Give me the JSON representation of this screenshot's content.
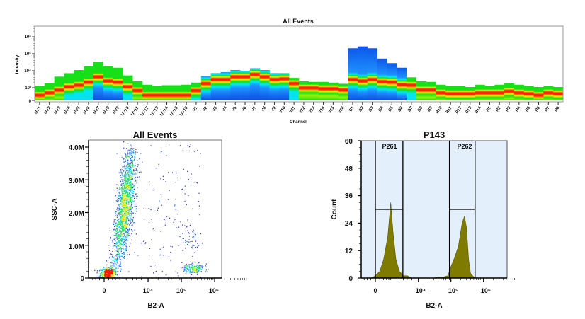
{
  "chart_data": [
    {
      "type": "heatmap",
      "title": "All Events",
      "xlabel": "Channel",
      "ylabel": "Intensity",
      "yscale": "biexponential",
      "yticks": [
        "0",
        "10³",
        "10⁴",
        "10⁵",
        "10⁶"
      ],
      "colors": {
        "red": "#ff2000",
        "yellow": "#f0f000",
        "green": "#18e018",
        "cyan": "#00e8f0",
        "blue": "#0c58e8"
      },
      "channels": [
        {
          "name": "UV1",
          "max": 1300,
          "peak": 480,
          "upper": "green",
          "lower": "green"
        },
        {
          "name": "UV2",
          "max": 1900,
          "peak": 670,
          "upper": "green",
          "lower": "green"
        },
        {
          "name": "UV3",
          "max": 4500,
          "peak": 890,
          "upper": "green",
          "lower": "green"
        },
        {
          "name": "UV4",
          "max": 7200,
          "peak": 1300,
          "upper": "green",
          "lower": "cyan"
        },
        {
          "name": "UV5",
          "max": 11000,
          "peak": 1600,
          "upper": "green",
          "lower": "cyan"
        },
        {
          "name": "UV6",
          "max": 18000,
          "peak": 2400,
          "upper": "green",
          "lower": "cyan"
        },
        {
          "name": "UV7",
          "max": 34000,
          "peak": 5000,
          "upper": "green",
          "lower": "blue"
        },
        {
          "name": "UV8",
          "max": 19000,
          "peak": 2800,
          "upper": "green",
          "lower": "blue"
        },
        {
          "name": "UV9",
          "max": 15000,
          "peak": 2400,
          "upper": "green",
          "lower": "blue"
        },
        {
          "name": "UV10",
          "max": 5300,
          "peak": 1300,
          "upper": "green",
          "lower": "cyan"
        },
        {
          "name": "UV11",
          "max": 2400,
          "peak": 850,
          "upper": "green",
          "lower": "green"
        },
        {
          "name": "UV12",
          "max": 1500,
          "peak": 480,
          "upper": "green",
          "lower": "green"
        },
        {
          "name": "UV13",
          "max": 1300,
          "peak": 480,
          "upper": "green",
          "lower": "green"
        },
        {
          "name": "UV14",
          "max": 1400,
          "peak": 480,
          "upper": "green",
          "lower": "green"
        },
        {
          "name": "UV15",
          "max": 1400,
          "peak": 480,
          "upper": "green",
          "lower": "green"
        },
        {
          "name": "UV16",
          "max": 1500,
          "peak": 480,
          "upper": "green",
          "lower": "green"
        },
        {
          "name": "V1",
          "max": 2000,
          "peak": 850,
          "upper": "green",
          "lower": "cyan"
        },
        {
          "name": "V2",
          "max": 4900,
          "peak": 2000,
          "upper": "blue",
          "lower": "blue"
        },
        {
          "name": "V3",
          "max": 7200,
          "peak": 3500,
          "upper": "blue",
          "lower": "blue"
        },
        {
          "name": "V4",
          "max": 8300,
          "peak": 3500,
          "upper": "blue",
          "lower": "blue"
        },
        {
          "name": "V5",
          "max": 11000,
          "peak": 5000,
          "upper": "blue",
          "lower": "blue"
        },
        {
          "name": "V6",
          "max": 10000,
          "peak": 5000,
          "upper": "blue",
          "lower": "blue"
        },
        {
          "name": "V7",
          "max": 14000,
          "peak": 7000,
          "upper": "blue",
          "lower": "blue"
        },
        {
          "name": "V8",
          "max": 11000,
          "peak": 5000,
          "upper": "blue",
          "lower": "blue"
        },
        {
          "name": "V9",
          "max": 7200,
          "peak": 3500,
          "upper": "blue",
          "lower": "blue"
        },
        {
          "name": "V10",
          "max": 7200,
          "peak": 3800,
          "upper": "blue",
          "lower": "blue"
        },
        {
          "name": "V11",
          "max": 3800,
          "peak": 2000,
          "upper": "green",
          "lower": "cyan"
        },
        {
          "name": "V12",
          "max": 2400,
          "peak": 1100,
          "upper": "green",
          "lower": "green"
        },
        {
          "name": "V13",
          "max": 2200,
          "peak": 1100,
          "upper": "green",
          "lower": "green"
        },
        {
          "name": "V14",
          "max": 2200,
          "peak": 1000,
          "upper": "green",
          "lower": "green"
        },
        {
          "name": "V15",
          "max": 2000,
          "peak": 1000,
          "upper": "green",
          "lower": "green"
        },
        {
          "name": "V16",
          "max": 1700,
          "peak": 900,
          "upper": "green",
          "lower": "green"
        },
        {
          "name": "B1",
          "max": 210000,
          "peak": 3500,
          "upper": "blue",
          "lower": "blue"
        },
        {
          "name": "B2",
          "max": 270000,
          "peak": 2800,
          "upper": "blue",
          "lower": "blue"
        },
        {
          "name": "B3",
          "max": 210000,
          "peak": 3500,
          "upper": "blue",
          "lower": "blue"
        },
        {
          "name": "B4",
          "max": 52000,
          "peak": 2600,
          "upper": "blue",
          "lower": "blue"
        },
        {
          "name": "B5",
          "max": 28000,
          "peak": 2400,
          "upper": "blue",
          "lower": "blue"
        },
        {
          "name": "B6",
          "max": 15000,
          "peak": 1700,
          "upper": "blue",
          "lower": "blue"
        },
        {
          "name": "B7",
          "max": 4100,
          "peak": 1600,
          "upper": "green",
          "lower": "cyan"
        },
        {
          "name": "B8",
          "max": 2400,
          "peak": 900,
          "upper": "green",
          "lower": "green"
        },
        {
          "name": "B9",
          "max": 2200,
          "peak": 900,
          "upper": "green",
          "lower": "green"
        },
        {
          "name": "B10",
          "max": 1500,
          "peak": 670,
          "upper": "green",
          "lower": "green"
        },
        {
          "name": "B11",
          "max": 1300,
          "peak": 600,
          "upper": "green",
          "lower": "green"
        },
        {
          "name": "B12",
          "max": 1300,
          "peak": 600,
          "upper": "green",
          "lower": "green"
        },
        {
          "name": "B13",
          "max": 1100,
          "peak": 600,
          "upper": "green",
          "lower": "green"
        },
        {
          "name": "B14",
          "max": 1500,
          "peak": 670,
          "upper": "green",
          "lower": "green"
        },
        {
          "name": "R1",
          "max": 1300,
          "peak": 670,
          "upper": "green",
          "lower": "green"
        },
        {
          "name": "R2",
          "max": 1500,
          "peak": 670,
          "upper": "green",
          "lower": "green"
        },
        {
          "name": "R3",
          "max": 1800,
          "peak": 800,
          "upper": "green",
          "lower": "green"
        },
        {
          "name": "R4",
          "max": 1500,
          "peak": 670,
          "upper": "green",
          "lower": "green"
        },
        {
          "name": "R5",
          "max": 1300,
          "peak": 600,
          "upper": "green",
          "lower": "green"
        },
        {
          "name": "R6",
          "max": 1100,
          "peak": 480,
          "upper": "green",
          "lower": "green"
        },
        {
          "name": "R7",
          "max": 1300,
          "peak": 670,
          "upper": "green",
          "lower": "green"
        },
        {
          "name": "R8",
          "max": 1100,
          "peak": 600,
          "upper": "green",
          "lower": "green"
        }
      ]
    },
    {
      "type": "scatter",
      "title": "All Events",
      "xlabel": "B2-A",
      "ylabel": "SSC-A",
      "xscale": "biexponential",
      "xticks": [
        "0",
        "10⁴",
        "10⁵",
        "10⁶"
      ],
      "yticks": [
        "0",
        "1.0M",
        "2.0M",
        "3.0M",
        "4.0M"
      ],
      "ylim": [
        0,
        4200000
      ],
      "coloring": "density (blue → cyan → green → yellow → red)",
      "populations": [
        {
          "b2a": 90,
          "ssc": 150000,
          "n": 500,
          "b2a_sd_decades": 0.12,
          "ssc_sd": 80000
        },
        {
          "b2a_from": 300,
          "ssc_from": 400000,
          "b2a_to": 1500,
          "ssc_to": 3900000,
          "n": 1800,
          "b2a_sd_decades": 0.1
        },
        {
          "b2a": 230000,
          "ssc": 300000,
          "n": 200,
          "b2a_sd_decades": 0.15,
          "ssc_sd": 70000
        },
        {
          "b2a": 200000,
          "ssc": 1200000,
          "n": 40,
          "b2a_sd_decades": 0.15,
          "ssc_sd": 250000
        },
        {
          "b2a_range": [
            1000,
            400000
          ],
          "ssc_range": [
            0,
            4100000
          ],
          "n": 150
        }
      ]
    },
    {
      "type": "area",
      "title": "P143",
      "xlabel": "B2-A",
      "ylabel": "Count",
      "xscale": "biexponential",
      "xticks": [
        "0",
        "10⁴",
        "10⁵",
        "10⁶"
      ],
      "yticks": [
        "0",
        "12",
        "24",
        "36",
        "48",
        "60"
      ],
      "ylim": [
        0,
        60
      ],
      "fill_color": "#7f7a00",
      "background_color": "#e3f0fb",
      "series": [
        {
          "points": [
            [
              -100,
              0
            ],
            [
              0,
              1
            ],
            [
              100,
              3
            ],
            [
              200,
              8
            ],
            [
              350,
              18
            ],
            [
              500,
              33
            ],
            [
              650,
              20
            ],
            [
              900,
              8
            ],
            [
              1300,
              3
            ],
            [
              2000,
              1
            ],
            [
              3000,
              1
            ],
            [
              5000,
              0
            ]
          ]
        },
        {
          "points": [
            [
              30000,
              0
            ],
            [
              40000,
              0.5
            ],
            [
              60000,
              0.5
            ],
            [
              80000,
              1
            ],
            [
              100000,
              5
            ],
            [
              130000,
              9
            ],
            [
              170000,
              14
            ],
            [
              220000,
              24
            ],
            [
              260000,
              27
            ],
            [
              300000,
              22
            ],
            [
              350000,
              8
            ],
            [
              400000,
              2
            ],
            [
              500000,
              0.5
            ],
            [
              600000,
              0
            ]
          ]
        }
      ],
      "gates": [
        {
          "label": "P261",
          "from": 0,
          "to": 1900,
          "count": 30
        },
        {
          "label": "P262",
          "from": 90000,
          "to": 550000,
          "count": 30
        }
      ]
    }
  ]
}
